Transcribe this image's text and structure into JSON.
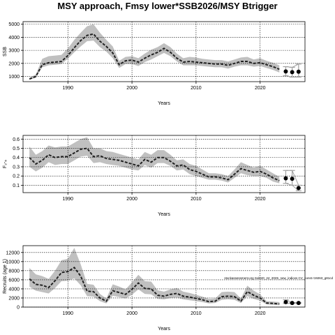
{
  "title": "MSY approach, Fmsy lower*SSB2026/MSY Btrigger",
  "colors": {
    "band": "#c0c0c0",
    "line": "#222222",
    "proj_ci": "#a0a0a0",
    "grid": "#000000"
  },
  "chart_data": [
    {
      "type": "line",
      "id": "ssb",
      "xlabel": "Years",
      "ylabel": "SSB",
      "xlim": [
        1983,
        2027
      ],
      "ylim": [
        600,
        5200
      ],
      "xticks": [
        1990,
        2000,
        2010,
        2020
      ],
      "yticks": [
        1000,
        2000,
        3000,
        4000,
        5000
      ],
      "grid": true,
      "x": [
        1984,
        1985,
        1986,
        1987,
        1988,
        1989,
        1990,
        1991,
        1992,
        1993,
        1994,
        1995,
        1996,
        1997,
        1998,
        1999,
        2000,
        2001,
        2002,
        2003,
        2004,
        2005,
        2006,
        2007,
        2008,
        2009,
        2010,
        2011,
        2012,
        2013,
        2014,
        2015,
        2016,
        2017,
        2018,
        2019,
        2020,
        2021,
        2022,
        2023
      ],
      "estimate": [
        800,
        1000,
        1900,
        2050,
        2100,
        2150,
        2600,
        3200,
        3750,
        4150,
        4250,
        3700,
        3300,
        2800,
        1900,
        2200,
        2250,
        2100,
        2400,
        2650,
        2850,
        3150,
        2850,
        2400,
        2100,
        2150,
        2100,
        2050,
        2000,
        1950,
        1950,
        1850,
        2000,
        2150,
        2150,
        2000,
        2050,
        1900,
        1750,
        1550
      ],
      "lower": [
        750,
        900,
        1700,
        1850,
        1900,
        1950,
        2350,
        2850,
        3300,
        3700,
        3750,
        3250,
        2900,
        2400,
        1650,
        1950,
        1950,
        1800,
        2100,
        2300,
        2550,
        2800,
        2550,
        2150,
        1850,
        1850,
        1850,
        1800,
        1750,
        1700,
        1700,
        1600,
        1750,
        1850,
        1850,
        1750,
        1800,
        1650,
        1500,
        1300
      ],
      "upper": [
        900,
        1150,
        2350,
        2550,
        2600,
        2650,
        3150,
        3800,
        4350,
        4850,
        5000,
        4350,
        3800,
        3300,
        2200,
        2500,
        2550,
        2400,
        2750,
        3050,
        3250,
        3550,
        3250,
        2750,
        2400,
        2500,
        2450,
        2350,
        2300,
        2250,
        2250,
        2150,
        2300,
        2450,
        2500,
        2300,
        2400,
        2200,
        2050,
        1850
      ],
      "projection": {
        "x": [
          2024,
          2025,
          2026
        ],
        "values": [
          1380,
          1330,
          1360
        ],
        "lower": [
          1050,
          950,
          950
        ],
        "upper": [
          1750,
          1700,
          1950
        ]
      }
    },
    {
      "type": "line",
      "id": "f",
      "xlabel": "Years",
      "ylabel": "F₂‑₆",
      "xlim": [
        1983,
        2027
      ],
      "ylim": [
        0.02,
        0.64
      ],
      "xticks": [
        1990,
        2000,
        2010,
        2020
      ],
      "yticks": [
        0.1,
        0.2,
        0.3,
        0.4,
        0.5,
        0.6
      ],
      "ytick_labels": [
        "0.1",
        "0.2",
        "0.3",
        "0.4",
        "0.5",
        "0.6"
      ],
      "grid": true,
      "x": [
        1984,
        1985,
        1986,
        1987,
        1988,
        1989,
        1990,
        1991,
        1992,
        1993,
        1994,
        1995,
        1996,
        1997,
        1998,
        1999,
        2000,
        2001,
        2002,
        2003,
        2004,
        2005,
        2006,
        2007,
        2008,
        2009,
        2010,
        2011,
        2012,
        2013,
        2014,
        2015,
        2016,
        2017,
        2018,
        2019,
        2020,
        2021,
        2022,
        2023
      ],
      "estimate": [
        0.4,
        0.33,
        0.37,
        0.43,
        0.4,
        0.41,
        0.41,
        0.45,
        0.49,
        0.5,
        0.41,
        0.42,
        0.39,
        0.38,
        0.37,
        0.35,
        0.33,
        0.31,
        0.38,
        0.35,
        0.4,
        0.4,
        0.36,
        0.31,
        0.32,
        0.27,
        0.25,
        0.22,
        0.19,
        0.19,
        0.18,
        0.16,
        0.22,
        0.28,
        0.26,
        0.24,
        0.25,
        0.22,
        0.18,
        0.15
      ],
      "lower": [
        0.3,
        0.25,
        0.29,
        0.35,
        0.32,
        0.33,
        0.33,
        0.37,
        0.41,
        0.42,
        0.34,
        0.35,
        0.33,
        0.32,
        0.31,
        0.29,
        0.27,
        0.26,
        0.32,
        0.29,
        0.34,
        0.34,
        0.31,
        0.26,
        0.27,
        0.22,
        0.2,
        0.18,
        0.16,
        0.16,
        0.15,
        0.13,
        0.18,
        0.23,
        0.21,
        0.2,
        0.2,
        0.18,
        0.14,
        0.12
      ],
      "upper": [
        0.52,
        0.43,
        0.47,
        0.53,
        0.51,
        0.52,
        0.52,
        0.56,
        0.6,
        0.62,
        0.5,
        0.5,
        0.47,
        0.46,
        0.44,
        0.42,
        0.4,
        0.38,
        0.46,
        0.43,
        0.48,
        0.48,
        0.43,
        0.37,
        0.38,
        0.33,
        0.31,
        0.27,
        0.23,
        0.23,
        0.22,
        0.2,
        0.27,
        0.35,
        0.32,
        0.29,
        0.31,
        0.27,
        0.23,
        0.19
      ],
      "projection": {
        "x": [
          2024,
          2025,
          2026
        ],
        "values": [
          0.175,
          0.17,
          0.07
        ],
        "lower": [
          0.12,
          0.1,
          0.04
        ],
        "upper": [
          0.26,
          0.26,
          0.1
        ]
      }
    },
    {
      "type": "line",
      "id": "recruits",
      "xlabel": "Years",
      "ylabel": "Recruits (age 1)",
      "xlim": [
        1983,
        2027
      ],
      "ylim": [
        0,
        13500
      ],
      "xticks": [
        1990,
        2000,
        2010,
        2020
      ],
      "yticks": [
        0,
        2000,
        4000,
        6000,
        8000,
        10000,
        12000
      ],
      "grid": true,
      "annotation": "stockassessment.org Sole20_24_2025_new_indices CV_const r19263_g81cd",
      "x": [
        1984,
        1985,
        1986,
        1987,
        1988,
        1989,
        1990,
        1991,
        1992,
        1993,
        1994,
        1995,
        1996,
        1997,
        1998,
        1999,
        2000,
        2001,
        2002,
        2003,
        2004,
        2005,
        2006,
        2007,
        2008,
        2009,
        2010,
        2011,
        2012,
        2013,
        2014,
        2015,
        2016,
        2017,
        2018,
        2019,
        2020,
        2021,
        2022,
        2023
      ],
      "estimate": [
        6200,
        5000,
        4800,
        4300,
        5800,
        7600,
        7800,
        8700,
        6800,
        3500,
        3400,
        2000,
        1300,
        3600,
        3200,
        2800,
        3900,
        5300,
        4100,
        4000,
        2600,
        2400,
        2800,
        3000,
        2400,
        2200,
        1900,
        1600,
        1200,
        1300,
        2300,
        2400,
        2300,
        1300,
        3400,
        2600,
        2000,
        900,
        800,
        700
      ],
      "lower": [
        4500,
        3600,
        3300,
        3000,
        4200,
        5700,
        5800,
        6300,
        4800,
        2400,
        2300,
        1300,
        800,
        2500,
        2200,
        1900,
        2700,
        3900,
        2900,
        2800,
        1800,
        1700,
        2000,
        2100,
        1700,
        1500,
        1300,
        1100,
        800,
        900,
        1600,
        1700,
        1600,
        900,
        2400,
        1800,
        1400,
        600,
        500,
        400
      ],
      "upper": [
        8600,
        7200,
        6800,
        6200,
        8000,
        10300,
        10600,
        13000,
        9400,
        5100,
        4900,
        2900,
        1900,
        5000,
        4500,
        3900,
        5400,
        7100,
        5700,
        5600,
        3700,
        3400,
        3900,
        4200,
        3400,
        3100,
        2700,
        2300,
        1800,
        1900,
        3300,
        3400,
        3300,
        1900,
        4700,
        3600,
        2800,
        1300,
        1200,
        1100
      ],
      "projection": {
        "x": [
          2024,
          2025,
          2026
        ],
        "values": [
          1100,
          900,
          900
        ],
        "lower": [
          800,
          800,
          800
        ],
        "upper": [
          1600,
          1000,
          1000
        ]
      }
    }
  ]
}
